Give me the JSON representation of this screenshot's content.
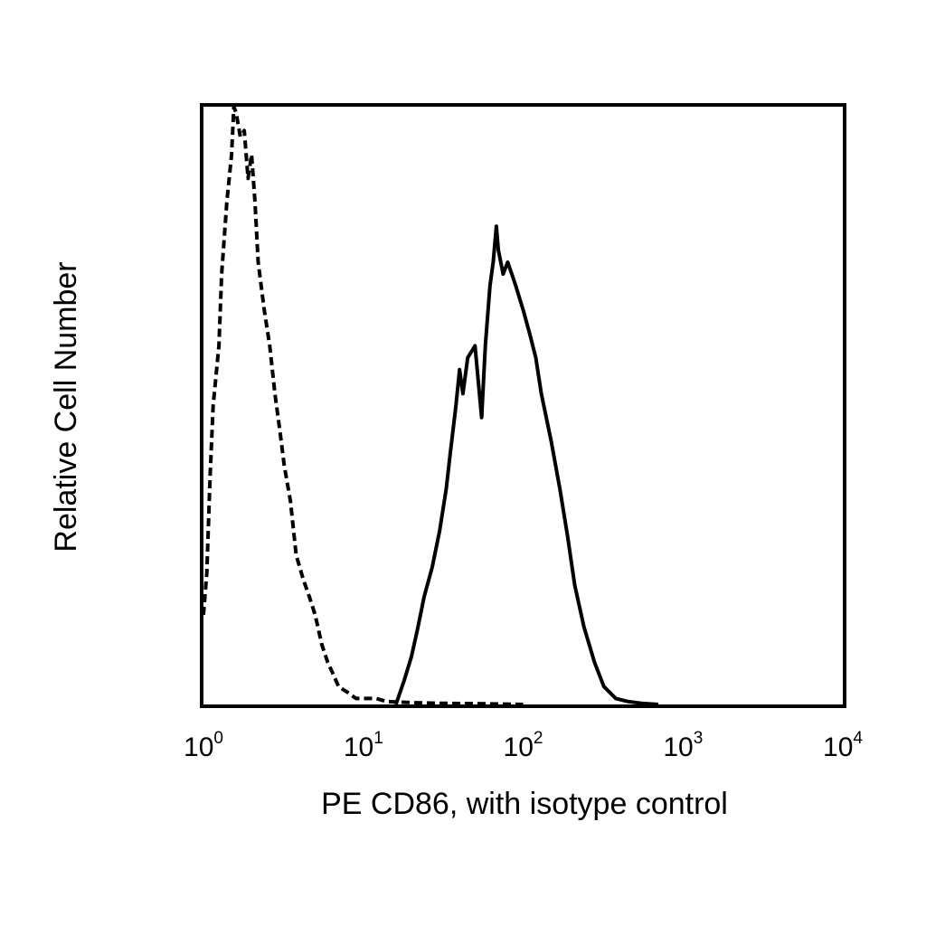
{
  "chart_data": {
    "type": "line",
    "xlabel": "PE CD86, with isotype control",
    "ylabel": "Relative Cell Number",
    "xscale": "log",
    "xlim": [
      1,
      10000
    ],
    "ylim": [
      0,
      100
    ],
    "grid": false,
    "x_ticks": [
      {
        "base": "10",
        "exp": "0"
      },
      {
        "base": "10",
        "exp": "1"
      },
      {
        "base": "10",
        "exp": "2"
      },
      {
        "base": "10",
        "exp": "3"
      },
      {
        "base": "10",
        "exp": "4"
      }
    ],
    "series": [
      {
        "style": "dashed",
        "color": "#000000",
        "points": [
          [
            1.0,
            15
          ],
          [
            1.05,
            22
          ],
          [
            1.1,
            38
          ],
          [
            1.15,
            50
          ],
          [
            1.25,
            60
          ],
          [
            1.3,
            72
          ],
          [
            1.4,
            84
          ],
          [
            1.5,
            92
          ],
          [
            1.55,
            100
          ],
          [
            1.6,
            99
          ],
          [
            1.7,
            95
          ],
          [
            1.8,
            96
          ],
          [
            1.9,
            88
          ],
          [
            2.0,
            92
          ],
          [
            2.1,
            84
          ],
          [
            2.2,
            74
          ],
          [
            2.4,
            66
          ],
          [
            2.6,
            60
          ],
          [
            2.8,
            52
          ],
          [
            3.0,
            46
          ],
          [
            3.2,
            40
          ],
          [
            3.5,
            34
          ],
          [
            3.8,
            25
          ],
          [
            4.2,
            21
          ],
          [
            4.6,
            18
          ],
          [
            5.0,
            15
          ],
          [
            5.5,
            10
          ],
          [
            6.0,
            7
          ],
          [
            6.5,
            5
          ],
          [
            7.0,
            3
          ],
          [
            8.0,
            2
          ],
          [
            9.0,
            1
          ],
          [
            10.0,
            1
          ],
          [
            12.0,
            1
          ],
          [
            14.0,
            0.5
          ],
          [
            20.0,
            0.3
          ],
          [
            30.0,
            0.2
          ],
          [
            60.0,
            0.1
          ],
          [
            100.0,
            0
          ]
        ]
      },
      {
        "style": "solid",
        "color": "#000000",
        "points": [
          [
            16,
            0
          ],
          [
            18,
            4
          ],
          [
            20,
            8
          ],
          [
            22,
            13
          ],
          [
            24,
            18
          ],
          [
            27,
            23
          ],
          [
            30,
            29
          ],
          [
            33,
            36
          ],
          [
            35,
            42
          ],
          [
            38,
            50
          ],
          [
            40,
            56
          ],
          [
            42,
            52
          ],
          [
            45,
            58
          ],
          [
            50,
            60
          ],
          [
            55,
            48
          ],
          [
            58,
            60
          ],
          [
            62,
            70
          ],
          [
            65,
            74
          ],
          [
            68,
            80
          ],
          [
            70,
            76
          ],
          [
            75,
            72
          ],
          [
            80,
            74
          ],
          [
            85,
            72
          ],
          [
            90,
            70
          ],
          [
            100,
            66
          ],
          [
            110,
            62
          ],
          [
            120,
            58
          ],
          [
            130,
            52
          ],
          [
            150,
            44
          ],
          [
            170,
            36
          ],
          [
            190,
            28
          ],
          [
            210,
            20
          ],
          [
            240,
            13
          ],
          [
            280,
            7
          ],
          [
            320,
            3
          ],
          [
            380,
            1
          ],
          [
            450,
            0.5
          ],
          [
            550,
            0.2
          ],
          [
            700,
            0
          ]
        ]
      }
    ]
  }
}
